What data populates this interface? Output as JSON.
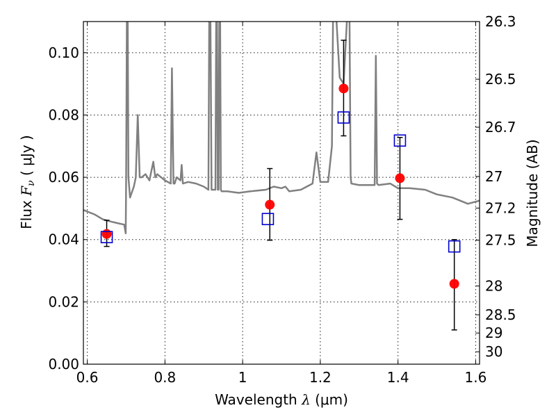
{
  "chart_data": {
    "type": "scatter",
    "xlabel_prefix": "Wavelength ",
    "xlabel_symbol": "λ",
    "xlabel_unit": "(μm)",
    "ylabel_prefix": "Flux ",
    "ylabel_symbol": "F",
    "ylabel_subscript": "ν",
    "ylabel_unit": "( μJy )",
    "y2label": "Magnitude (AB)",
    "xlim": [
      0.59,
      1.61
    ],
    "ylim": [
      0.0,
      0.11
    ],
    "grid": true,
    "x_ticks": [
      {
        "value": 0.6,
        "label": "0.6"
      },
      {
        "value": 0.8,
        "label": "0.8"
      },
      {
        "value": 1.0,
        "label": "1"
      },
      {
        "value": 1.2,
        "label": "1.2"
      },
      {
        "value": 1.4,
        "label": "1.4"
      },
      {
        "value": 1.6,
        "label": "1.6"
      }
    ],
    "y_ticks": [
      {
        "value": 0.0,
        "label": "0.00"
      },
      {
        "value": 0.02,
        "label": "0.02"
      },
      {
        "value": 0.04,
        "label": "0.04"
      },
      {
        "value": 0.06,
        "label": "0.06"
      },
      {
        "value": 0.08,
        "label": "0.08"
      },
      {
        "value": 0.1,
        "label": "0.10"
      }
    ],
    "y2_ticks": [
      {
        "flux": 0.10998,
        "label": "26.3"
      },
      {
        "flux": 0.09147,
        "label": "26.5"
      },
      {
        "flux": 0.07608,
        "label": "26.7"
      },
      {
        "flux": 0.06026,
        "label": "27"
      },
      {
        "flux": 0.05012,
        "label": "27.2"
      },
      {
        "flux": 0.03981,
        "label": "27.5"
      },
      {
        "flux": 0.02512,
        "label": "28"
      },
      {
        "flux": 0.01585,
        "label": "28.5"
      },
      {
        "flux": 0.01,
        "label": "29"
      },
      {
        "flux": 0.00398,
        "label": "30"
      }
    ],
    "series": [
      {
        "type": "line",
        "color": "#808080",
        "x": [
          0.59,
          0.62,
          0.64,
          0.66,
          0.68,
          0.695,
          0.699,
          0.7,
          0.702,
          0.704,
          0.706,
          0.71,
          0.72,
          0.725,
          0.73,
          0.735,
          0.74,
          0.75,
          0.76,
          0.77,
          0.775,
          0.78,
          0.8,
          0.815,
          0.818,
          0.822,
          0.825,
          0.83,
          0.84,
          0.843,
          0.846,
          0.86,
          0.88,
          0.9,
          0.912,
          0.914,
          0.917,
          0.92,
          0.93,
          0.932,
          0.934,
          0.936,
          0.938,
          0.94,
          0.942,
          0.944,
          0.946,
          0.95,
          0.96,
          0.99,
          1.02,
          1.06,
          1.08,
          1.1,
          1.11,
          1.12,
          1.15,
          1.18,
          1.19,
          1.2,
          1.22,
          1.23,
          1.233,
          1.24,
          1.25,
          1.26,
          1.27,
          1.275,
          1.278,
          1.28,
          1.3,
          1.33,
          1.34,
          1.343,
          1.346,
          1.35,
          1.38,
          1.4,
          1.43,
          1.47,
          1.5,
          1.54,
          1.58,
          1.61
        ],
        "y": [
          0.0495,
          0.048,
          0.0465,
          0.0458,
          0.0452,
          0.0448,
          0.042,
          0.06,
          0.114,
          0.114,
          0.06,
          0.0535,
          0.057,
          0.06,
          0.08,
          0.06,
          0.06,
          0.061,
          0.059,
          0.065,
          0.06,
          0.061,
          0.059,
          0.058,
          0.095,
          0.058,
          0.058,
          0.06,
          0.059,
          0.064,
          0.058,
          0.0585,
          0.058,
          0.057,
          0.056,
          0.114,
          0.114,
          0.056,
          0.056,
          0.114,
          0.114,
          0.056,
          0.056,
          0.114,
          0.114,
          0.056,
          0.0555,
          0.0555,
          0.0555,
          0.055,
          0.0555,
          0.056,
          0.057,
          0.0565,
          0.057,
          0.0555,
          0.056,
          0.058,
          0.068,
          0.0585,
          0.0585,
          0.07,
          0.114,
          0.114,
          0.092,
          0.09,
          0.114,
          0.114,
          0.06,
          0.058,
          0.0575,
          0.0575,
          0.0575,
          0.099,
          0.058,
          0.0575,
          0.058,
          0.0565,
          0.0565,
          0.056,
          0.0545,
          0.0535,
          0.0515,
          0.0525
        ]
      },
      {
        "type": "errorbar",
        "marker": "circle",
        "color": "#ff0000",
        "points": [
          {
            "x": 0.65,
            "y": 0.0418,
            "ylow": 0.0378,
            "yhigh": 0.0462
          },
          {
            "x": 1.07,
            "y": 0.0512,
            "ylow": 0.0398,
            "yhigh": 0.0628
          },
          {
            "x": 1.26,
            "y": 0.0885,
            "ylow": 0.0733,
            "yhigh": 0.104
          },
          {
            "x": 1.405,
            "y": 0.0597,
            "ylow": 0.0465,
            "yhigh": 0.0728
          },
          {
            "x": 1.545,
            "y": 0.0258,
            "ylow": 0.011,
            "yhigh": 0.04
          }
        ]
      },
      {
        "type": "scatter",
        "marker": "square",
        "color": "#0000cc",
        "points": [
          {
            "x": 0.65,
            "y": 0.0408
          },
          {
            "x": 1.065,
            "y": 0.0466
          },
          {
            "x": 1.26,
            "y": 0.0792
          },
          {
            "x": 1.405,
            "y": 0.0718
          },
          {
            "x": 1.545,
            "y": 0.0378
          }
        ]
      }
    ]
  }
}
